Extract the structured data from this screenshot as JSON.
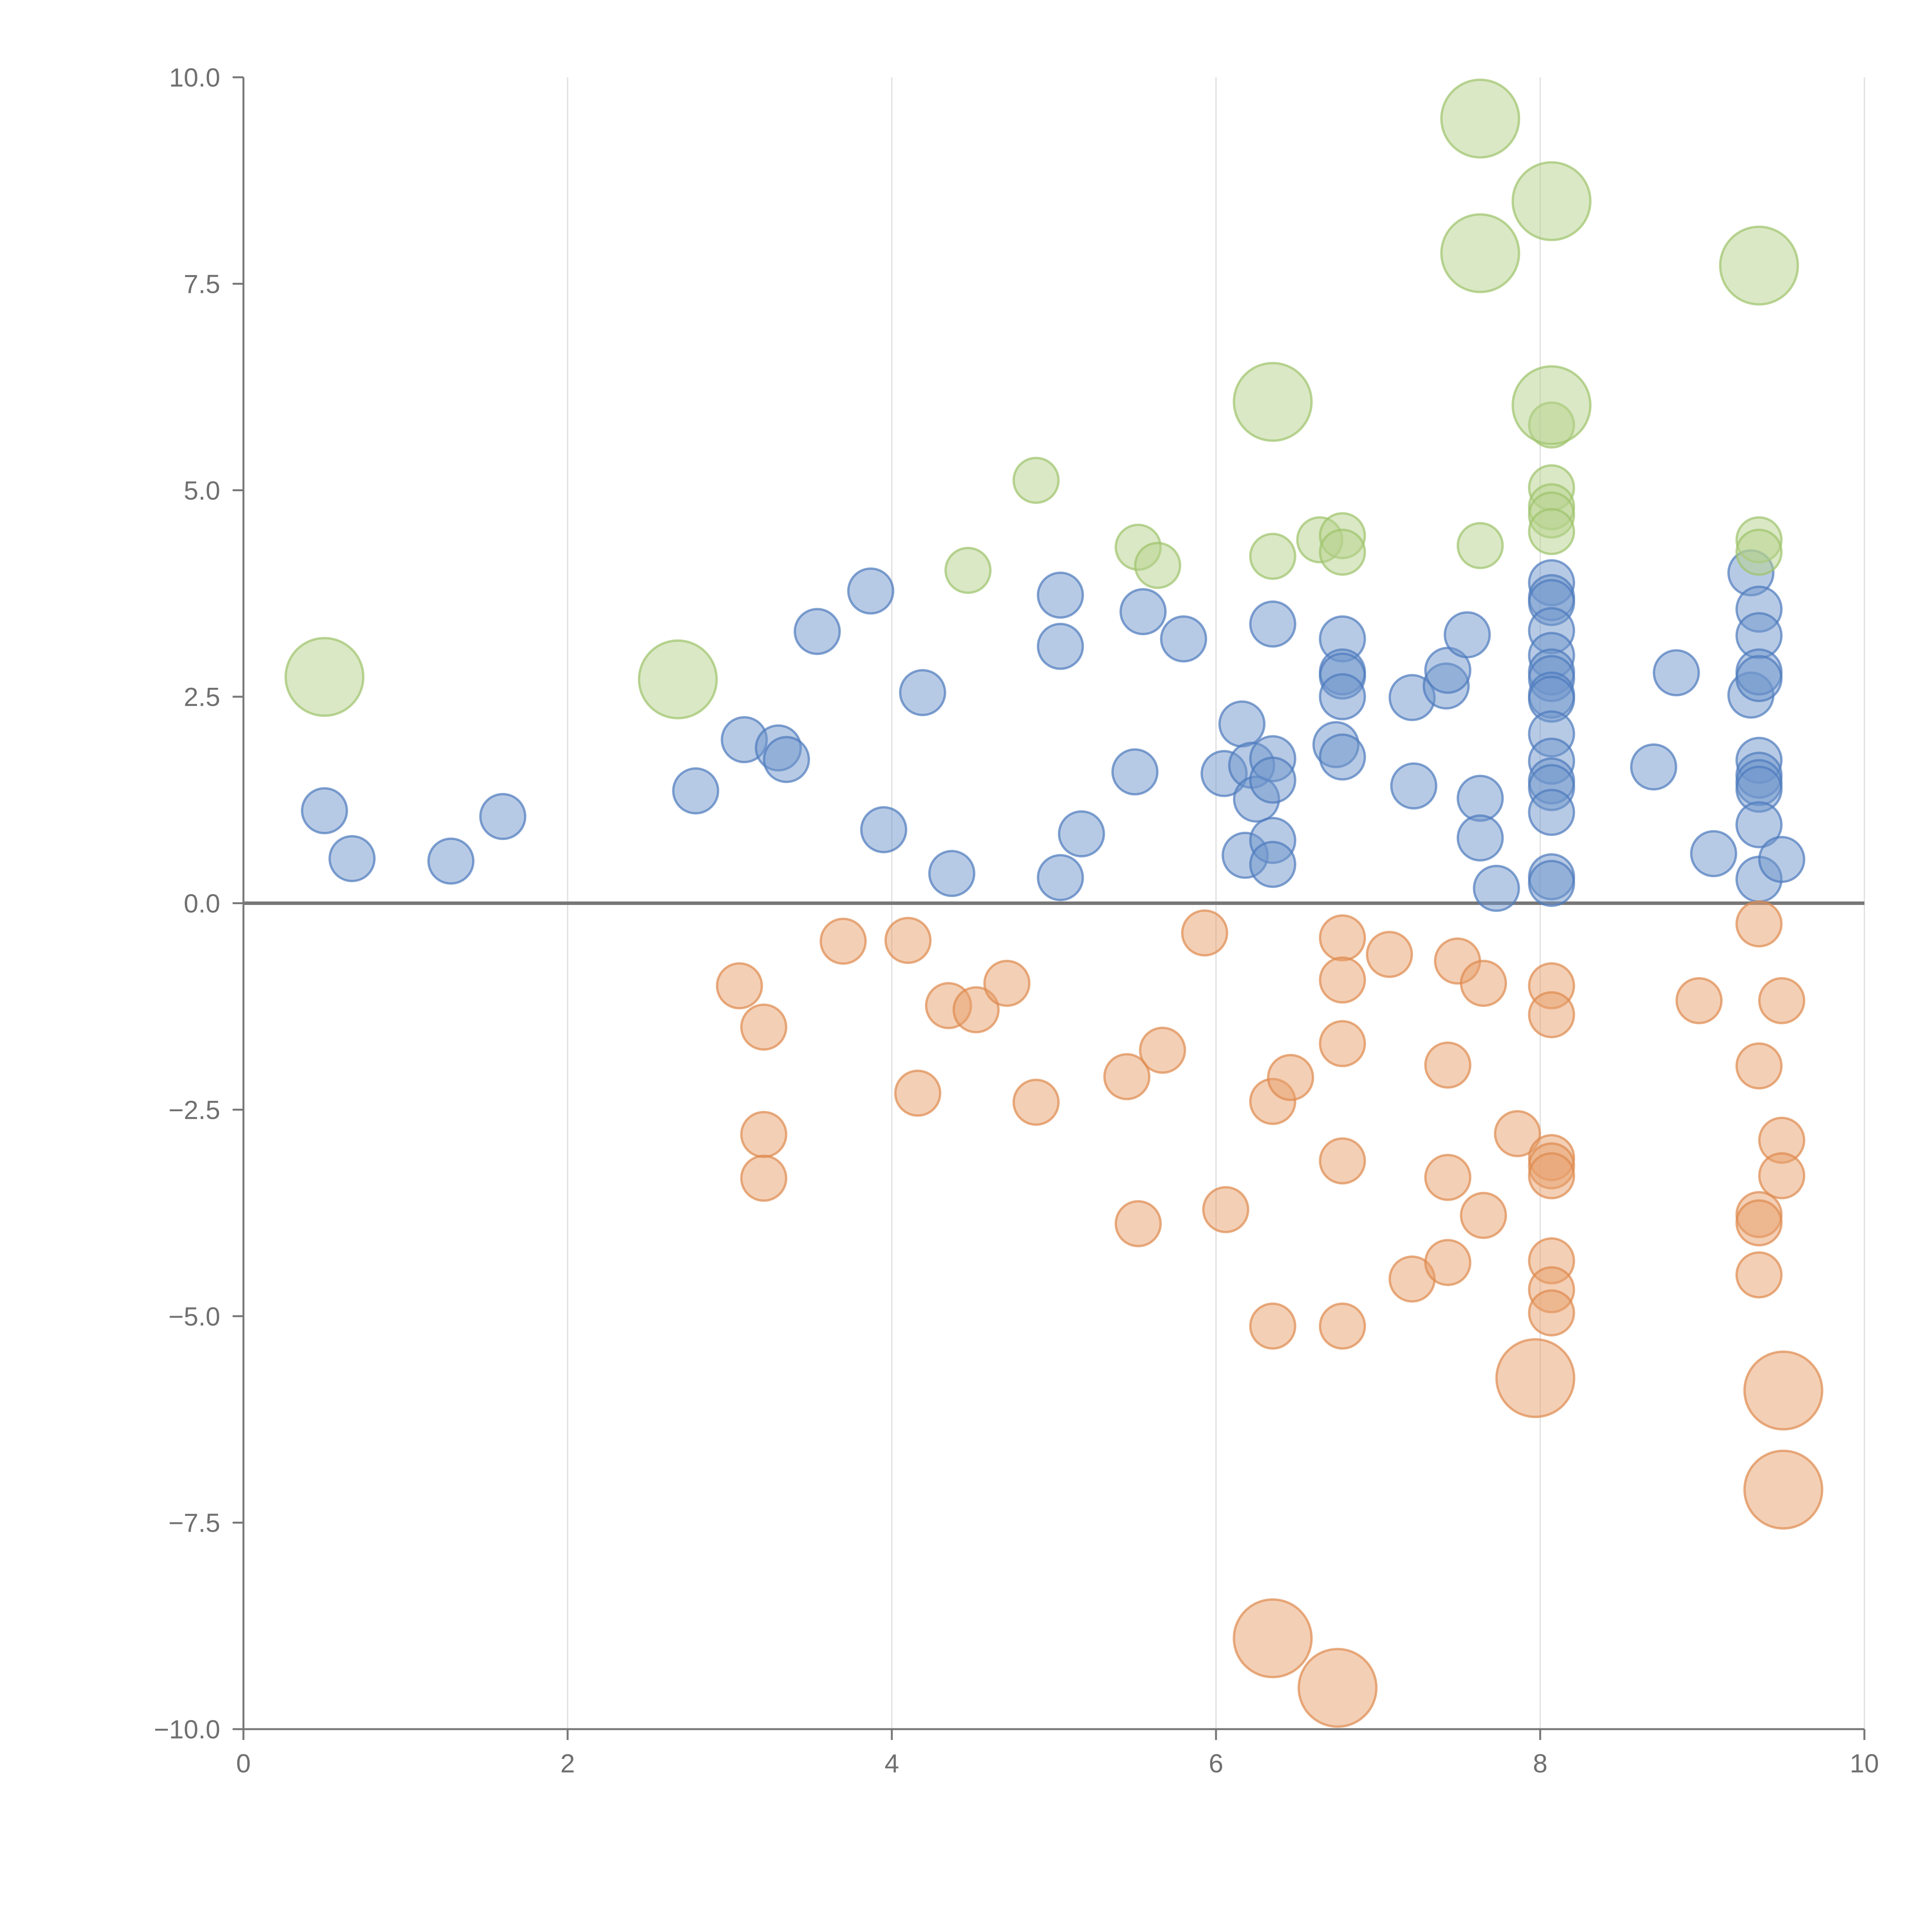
{
  "chart_data": {
    "type": "scatter",
    "title": "",
    "xlabel": "",
    "ylabel": "",
    "xlim": [
      0,
      10
    ],
    "ylim": [
      -10,
      10
    ],
    "x_ticks": [
      "0",
      "2",
      "4",
      "6",
      "8",
      "10"
    ],
    "x_tick_values": [
      0,
      2,
      4,
      6,
      8,
      10
    ],
    "y_ticks": [
      "10.0",
      "7.5",
      "5.0",
      "2.5",
      "0.0",
      "−2.5",
      "−5.0",
      "−7.5",
      "−10.0"
    ],
    "y_tick_values": [
      10,
      7.5,
      5,
      2.5,
      0,
      -2.5,
      -5,
      -7.5,
      -10
    ],
    "grid": {
      "vertical": true,
      "horizontal": false
    },
    "zero_line": true,
    "series": [
      {
        "name": "blue",
        "color": "#6f95cc",
        "stroke": "#4d7bbd",
        "points": [
          {
            "x": 0.5,
            "y": 1.12,
            "size": 1
          },
          {
            "x": 0.67,
            "y": 0.54,
            "size": 1
          },
          {
            "x": 1.28,
            "y": 0.51,
            "size": 1
          },
          {
            "x": 1.6,
            "y": 1.05,
            "size": 1
          },
          {
            "x": 2.79,
            "y": 1.36,
            "size": 1
          },
          {
            "x": 3.09,
            "y": 1.98,
            "size": 1
          },
          {
            "x": 3.3,
            "y": 1.88,
            "size": 1
          },
          {
            "x": 3.35,
            "y": 1.74,
            "size": 1
          },
          {
            "x": 3.54,
            "y": 3.29,
            "size": 1
          },
          {
            "x": 3.87,
            "y": 3.78,
            "size": 1
          },
          {
            "x": 3.95,
            "y": 0.89,
            "size": 1
          },
          {
            "x": 4.19,
            "y": 2.55,
            "size": 1
          },
          {
            "x": 4.37,
            "y": 0.36,
            "size": 1
          },
          {
            "x": 5.04,
            "y": 3.73,
            "size": 1
          },
          {
            "x": 5.04,
            "y": 3.11,
            "size": 1
          },
          {
            "x": 5.04,
            "y": 0.31,
            "size": 1
          },
          {
            "x": 5.17,
            "y": 0.84,
            "size": 1
          },
          {
            "x": 5.5,
            "y": 1.59,
            "size": 1
          },
          {
            "x": 5.55,
            "y": 3.53,
            "size": 1
          },
          {
            "x": 5.8,
            "y": 3.2,
            "size": 1
          },
          {
            "x": 6.05,
            "y": 1.57,
            "size": 1
          },
          {
            "x": 6.16,
            "y": 2.17,
            "size": 1
          },
          {
            "x": 6.18,
            "y": 0.58,
            "size": 1
          },
          {
            "x": 6.22,
            "y": 1.67,
            "size": 1
          },
          {
            "x": 6.25,
            "y": 1.26,
            "size": 1
          },
          {
            "x": 6.35,
            "y": 3.38,
            "size": 1
          },
          {
            "x": 6.35,
            "y": 1.75,
            "size": 1
          },
          {
            "x": 6.35,
            "y": 1.49,
            "size": 1
          },
          {
            "x": 6.35,
            "y": 0.76,
            "size": 1
          },
          {
            "x": 6.35,
            "y": 0.47,
            "size": 1
          },
          {
            "x": 6.74,
            "y": 1.92,
            "size": 1
          },
          {
            "x": 6.78,
            "y": 3.2,
            "size": 1
          },
          {
            "x": 6.78,
            "y": 2.8,
            "size": 1
          },
          {
            "x": 6.78,
            "y": 2.75,
            "size": 1
          },
          {
            "x": 6.78,
            "y": 2.5,
            "size": 1
          },
          {
            "x": 6.78,
            "y": 1.77,
            "size": 1
          },
          {
            "x": 7.21,
            "y": 2.49,
            "size": 1
          },
          {
            "x": 7.22,
            "y": 1.42,
            "size": 1
          },
          {
            "x": 7.42,
            "y": 2.63,
            "size": 1
          },
          {
            "x": 7.43,
            "y": 2.82,
            "size": 1
          },
          {
            "x": 7.55,
            "y": 3.25,
            "size": 1
          },
          {
            "x": 7.63,
            "y": 1.27,
            "size": 1
          },
          {
            "x": 7.63,
            "y": 0.79,
            "size": 1
          },
          {
            "x": 7.73,
            "y": 0.18,
            "size": 1
          },
          {
            "x": 8.07,
            "y": 3.88,
            "size": 1
          },
          {
            "x": 8.07,
            "y": 3.7,
            "size": 1
          },
          {
            "x": 8.07,
            "y": 3.64,
            "size": 1
          },
          {
            "x": 8.07,
            "y": 3.3,
            "size": 1
          },
          {
            "x": 8.07,
            "y": 3.0,
            "size": 1
          },
          {
            "x": 8.07,
            "y": 2.8,
            "size": 1
          },
          {
            "x": 8.07,
            "y": 2.72,
            "size": 1
          },
          {
            "x": 8.07,
            "y": 2.52,
            "size": 1
          },
          {
            "x": 8.07,
            "y": 2.47,
            "size": 1
          },
          {
            "x": 8.07,
            "y": 2.05,
            "size": 1
          },
          {
            "x": 8.07,
            "y": 1.72,
            "size": 1
          },
          {
            "x": 8.07,
            "y": 1.48,
            "size": 1
          },
          {
            "x": 8.07,
            "y": 1.4,
            "size": 1
          },
          {
            "x": 8.07,
            "y": 1.1,
            "size": 1
          },
          {
            "x": 8.07,
            "y": 0.32,
            "size": 1
          },
          {
            "x": 8.07,
            "y": 0.24,
            "size": 1
          },
          {
            "x": 8.7,
            "y": 1.65,
            "size": 1
          },
          {
            "x": 8.84,
            "y": 2.79,
            "size": 1
          },
          {
            "x": 9.07,
            "y": 0.6,
            "size": 1
          },
          {
            "x": 9.3,
            "y": 2.52,
            "size": 1
          },
          {
            "x": 9.3,
            "y": 4.0,
            "size": 1
          },
          {
            "x": 9.35,
            "y": 3.56,
            "size": 1
          },
          {
            "x": 9.35,
            "y": 3.24,
            "size": 1
          },
          {
            "x": 9.35,
            "y": 2.8,
            "size": 1
          },
          {
            "x": 9.35,
            "y": 2.72,
            "size": 1
          },
          {
            "x": 9.35,
            "y": 1.73,
            "size": 1
          },
          {
            "x": 9.35,
            "y": 1.55,
            "size": 1
          },
          {
            "x": 9.35,
            "y": 1.46,
            "size": 1
          },
          {
            "x": 9.35,
            "y": 1.38,
            "size": 1
          },
          {
            "x": 9.35,
            "y": 0.95,
            "size": 1
          },
          {
            "x": 9.35,
            "y": 0.29,
            "size": 1
          },
          {
            "x": 9.49,
            "y": 0.53,
            "size": 1
          }
        ]
      },
      {
        "name": "orange",
        "color": "#e8a06c",
        "stroke": "#de8a4e",
        "points": [
          {
            "x": 3.06,
            "y": -1.0,
            "size": 1
          },
          {
            "x": 3.21,
            "y": -1.5,
            "size": 1
          },
          {
            "x": 3.21,
            "y": -2.8,
            "size": 1
          },
          {
            "x": 3.21,
            "y": -3.33,
            "size": 1
          },
          {
            "x": 3.7,
            "y": -0.46,
            "size": 1
          },
          {
            "x": 4.1,
            "y": -0.45,
            "size": 1
          },
          {
            "x": 4.16,
            "y": -2.3,
            "size": 1
          },
          {
            "x": 4.35,
            "y": -1.24,
            "size": 1
          },
          {
            "x": 4.52,
            "y": -1.29,
            "size": 1
          },
          {
            "x": 4.71,
            "y": -0.97,
            "size": 1
          },
          {
            "x": 4.89,
            "y": -2.41,
            "size": 1
          },
          {
            "x": 5.45,
            "y": -2.1,
            "size": 1
          },
          {
            "x": 5.52,
            "y": -3.88,
            "size": 1
          },
          {
            "x": 5.67,
            "y": -1.78,
            "size": 1
          },
          {
            "x": 5.93,
            "y": -0.36,
            "size": 1
          },
          {
            "x": 6.06,
            "y": -3.71,
            "size": 1
          },
          {
            "x": 6.35,
            "y": -2.4,
            "size": 1
          },
          {
            "x": 6.35,
            "y": -5.12,
            "size": 1
          },
          {
            "x": 6.46,
            "y": -2.11,
            "size": 1
          },
          {
            "x": 6.78,
            "y": -0.42,
            "size": 1
          },
          {
            "x": 6.78,
            "y": -0.93,
            "size": 1
          },
          {
            "x": 6.78,
            "y": -1.7,
            "size": 1
          },
          {
            "x": 6.78,
            "y": -3.12,
            "size": 1
          },
          {
            "x": 6.78,
            "y": -5.12,
            "size": 1
          },
          {
            "x": 7.07,
            "y": -0.62,
            "size": 1
          },
          {
            "x": 7.21,
            "y": -4.55,
            "size": 1
          },
          {
            "x": 7.43,
            "y": -1.96,
            "size": 1
          },
          {
            "x": 7.43,
            "y": -3.32,
            "size": 1
          },
          {
            "x": 7.43,
            "y": -4.35,
            "size": 1
          },
          {
            "x": 7.49,
            "y": -0.7,
            "size": 1
          },
          {
            "x": 7.65,
            "y": -0.97,
            "size": 1
          },
          {
            "x": 7.65,
            "y": -3.78,
            "size": 1
          },
          {
            "x": 7.86,
            "y": -2.79,
            "size": 1
          },
          {
            "x": 8.07,
            "y": -1.0,
            "size": 1
          },
          {
            "x": 8.07,
            "y": -1.35,
            "size": 1
          },
          {
            "x": 8.07,
            "y": -3.08,
            "size": 1
          },
          {
            "x": 8.07,
            "y": -3.18,
            "size": 1
          },
          {
            "x": 8.07,
            "y": -3.3,
            "size": 1
          },
          {
            "x": 8.07,
            "y": -4.33,
            "size": 1
          },
          {
            "x": 8.07,
            "y": -4.68,
            "size": 1
          },
          {
            "x": 8.07,
            "y": -4.96,
            "size": 1
          },
          {
            "x": 8.98,
            "y": -1.18,
            "size": 1
          },
          {
            "x": 9.35,
            "y": -0.25,
            "size": 1
          },
          {
            "x": 9.35,
            "y": -1.97,
            "size": 1
          },
          {
            "x": 9.35,
            "y": -3.77,
            "size": 1
          },
          {
            "x": 9.35,
            "y": -3.87,
            "size": 1
          },
          {
            "x": 9.35,
            "y": -4.5,
            "size": 1
          },
          {
            "x": 9.49,
            "y": -1.18,
            "size": 1
          },
          {
            "x": 9.49,
            "y": -2.87,
            "size": 1
          },
          {
            "x": 9.49,
            "y": -3.3,
            "size": 1
          },
          {
            "x": 7.97,
            "y": -5.75,
            "size": 3
          },
          {
            "x": 9.5,
            "y": -5.9,
            "size": 3
          },
          {
            "x": 9.5,
            "y": -7.1,
            "size": 3
          },
          {
            "x": 6.35,
            "y": -8.9,
            "size": 3
          },
          {
            "x": 6.75,
            "y": -9.5,
            "size": 3
          }
        ]
      },
      {
        "name": "green",
        "color": "#b5d18c",
        "stroke": "#9ec36b",
        "points": [
          {
            "x": 4.47,
            "y": 4.03,
            "size": 1
          },
          {
            "x": 4.89,
            "y": 5.12,
            "size": 1
          },
          {
            "x": 5.52,
            "y": 4.31,
            "size": 1
          },
          {
            "x": 5.64,
            "y": 4.09,
            "size": 1
          },
          {
            "x": 6.35,
            "y": 4.2,
            "size": 1
          },
          {
            "x": 6.64,
            "y": 4.4,
            "size": 1
          },
          {
            "x": 6.78,
            "y": 4.45,
            "size": 1
          },
          {
            "x": 6.78,
            "y": 4.25,
            "size": 1
          },
          {
            "x": 7.63,
            "y": 4.33,
            "size": 1
          },
          {
            "x": 8.07,
            "y": 5.79,
            "size": 1
          },
          {
            "x": 8.07,
            "y": 5.03,
            "size": 1
          },
          {
            "x": 8.07,
            "y": 4.8,
            "size": 1
          },
          {
            "x": 8.07,
            "y": 4.7,
            "size": 1
          },
          {
            "x": 8.07,
            "y": 4.5,
            "size": 1
          },
          {
            "x": 9.35,
            "y": 4.4,
            "size": 1
          },
          {
            "x": 9.35,
            "y": 4.25,
            "size": 1
          },
          {
            "x": 0.5,
            "y": 2.74,
            "size": 3
          },
          {
            "x": 2.68,
            "y": 2.71,
            "size": 3
          },
          {
            "x": 6.35,
            "y": 6.07,
            "size": 3
          },
          {
            "x": 7.63,
            "y": 9.5,
            "size": 3
          },
          {
            "x": 7.63,
            "y": 7.87,
            "size": 3
          },
          {
            "x": 8.07,
            "y": 8.5,
            "size": 3
          },
          {
            "x": 8.07,
            "y": 6.03,
            "size": 3
          },
          {
            "x": 9.35,
            "y": 7.72,
            "size": 3
          }
        ]
      }
    ]
  }
}
